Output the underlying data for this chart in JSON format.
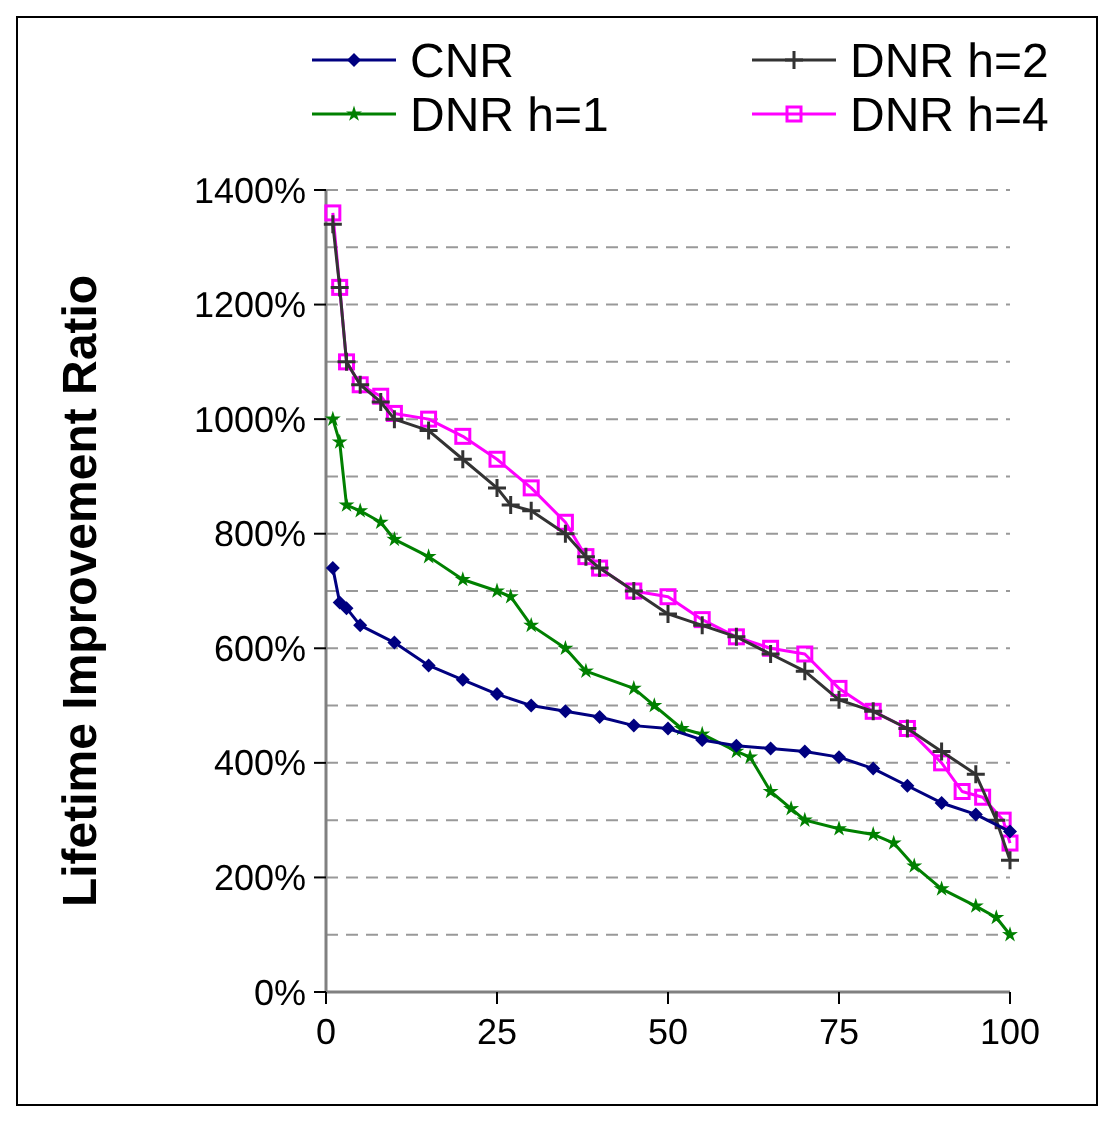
{
  "chart_data": {
    "type": "line",
    "ylabel": "Lifetime Improvement Ratio",
    "xlim": [
      0,
      100
    ],
    "xticks": [
      0,
      25,
      50,
      75,
      100
    ],
    "ylim": [
      0,
      1400
    ],
    "yticks": [
      {
        "value": 0,
        "label": "0%"
      },
      {
        "value": 100,
        "label": null
      },
      {
        "value": 200,
        "label": "200%"
      },
      {
        "value": 300,
        "label": null
      },
      {
        "value": 400,
        "label": "400%"
      },
      {
        "value": 500,
        "label": null
      },
      {
        "value": 600,
        "label": "600%"
      },
      {
        "value": 700,
        "label": null
      },
      {
        "value": 800,
        "label": "800%"
      },
      {
        "value": 900,
        "label": null
      },
      {
        "value": 1000,
        "label": "1000%"
      },
      {
        "value": 1100,
        "label": null
      },
      {
        "value": 1200,
        "label": "1200%"
      },
      {
        "value": 1300,
        "label": null
      },
      {
        "value": 1400,
        "label": "1400%"
      }
    ],
    "grid": "y",
    "legend": "top",
    "line_style": "solid",
    "series": [
      {
        "name": "CNR",
        "color": "#000080",
        "marker": "diamond",
        "x": [
          1,
          2,
          3,
          5,
          10,
          15,
          20,
          25,
          30,
          35,
          40,
          45,
          50,
          55,
          60,
          65,
          70,
          75,
          80,
          85,
          90,
          95,
          100
        ],
        "values": [
          740,
          680,
          670,
          640,
          610,
          570,
          545,
          520,
          500,
          490,
          480,
          465,
          460,
          440,
          430,
          425,
          420,
          410,
          390,
          360,
          330,
          310,
          280
        ]
      },
      {
        "name": "DNR h=1",
        "color": "#008000",
        "marker": "star",
        "x": [
          1,
          2,
          3,
          5,
          8,
          10,
          15,
          20,
          25,
          27,
          30,
          35,
          38,
          45,
          48,
          52,
          55,
          60,
          62,
          65,
          68,
          70,
          75,
          80,
          83,
          86,
          90,
          95,
          98,
          100
        ],
        "values": [
          1000,
          960,
          850,
          840,
          820,
          790,
          760,
          720,
          700,
          690,
          640,
          600,
          560,
          530,
          500,
          460,
          450,
          420,
          410,
          350,
          320,
          300,
          285,
          275,
          260,
          220,
          180,
          150,
          130,
          100
        ]
      },
      {
        "name": "DNR h=2",
        "color": "#333333",
        "marker": "cross",
        "x": [
          1,
          2,
          3,
          5,
          8,
          10,
          15,
          20,
          25,
          27,
          30,
          35,
          38,
          40,
          45,
          50,
          55,
          60,
          65,
          70,
          75,
          80,
          85,
          90,
          95,
          98,
          100
        ],
        "values": [
          1340,
          1230,
          1100,
          1060,
          1030,
          1000,
          980,
          930,
          880,
          850,
          840,
          800,
          760,
          740,
          700,
          660,
          640,
          620,
          590,
          560,
          510,
          490,
          460,
          420,
          380,
          300,
          230
        ]
      },
      {
        "name": "DNR h=4",
        "color": "#ff00ff",
        "marker": "square",
        "x": [
          1,
          2,
          3,
          5,
          8,
          10,
          15,
          20,
          25,
          30,
          35,
          38,
          40,
          45,
          50,
          55,
          60,
          65,
          70,
          75,
          80,
          85,
          90,
          93,
          96,
          99,
          100
        ],
        "values": [
          1360,
          1230,
          1100,
          1060,
          1040,
          1010,
          1000,
          970,
          930,
          880,
          820,
          760,
          740,
          700,
          690,
          650,
          620,
          600,
          590,
          530,
          490,
          460,
          400,
          350,
          340,
          300,
          260
        ]
      }
    ]
  }
}
